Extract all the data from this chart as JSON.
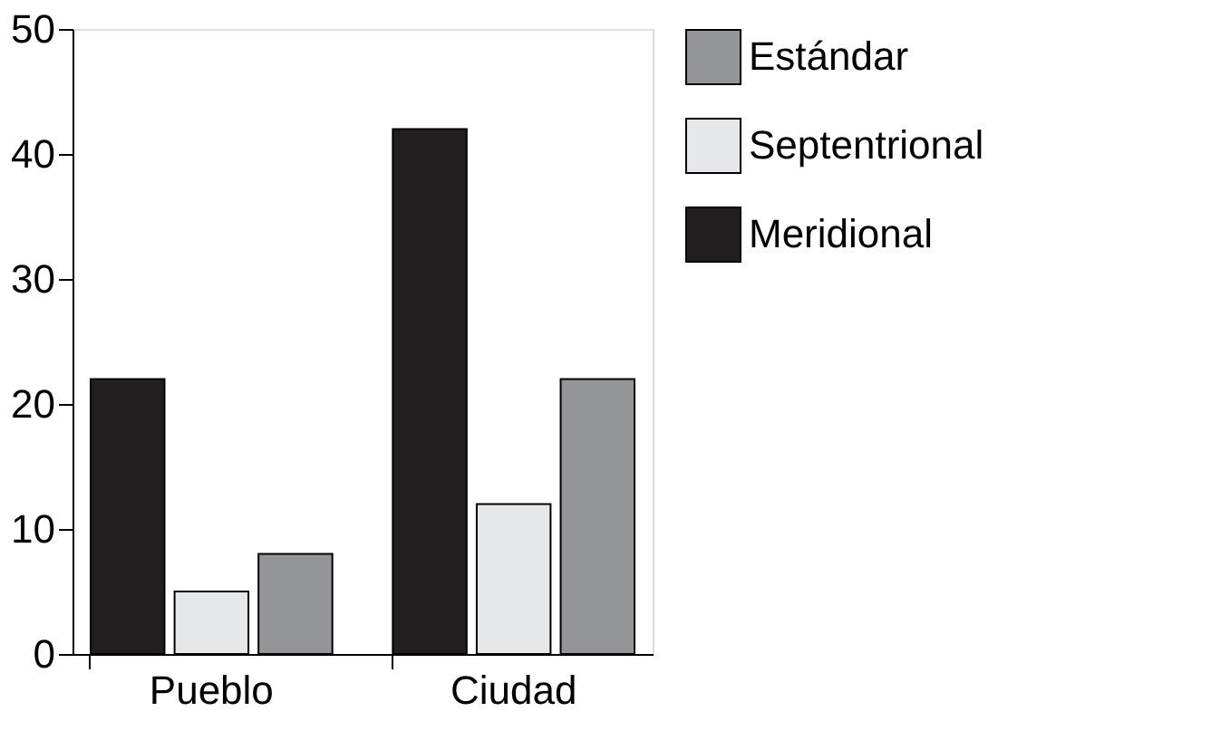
{
  "chart_data": {
    "type": "bar",
    "categories": [
      "Pueblo",
      "Ciudad"
    ],
    "series": [
      {
        "name": "Meridional",
        "color": "#231f20",
        "values": [
          22,
          42
        ]
      },
      {
        "name": "Septentrional",
        "color": "#e6e7e8",
        "values": [
          5,
          12
        ]
      },
      {
        "name": "Estándar",
        "color": "#939598",
        "values": [
          8,
          22
        ]
      }
    ],
    "ylim": [
      0,
      50
    ],
    "yticks": [
      0,
      10,
      20,
      30,
      40,
      50
    ],
    "grid": false,
    "legend": "right"
  }
}
